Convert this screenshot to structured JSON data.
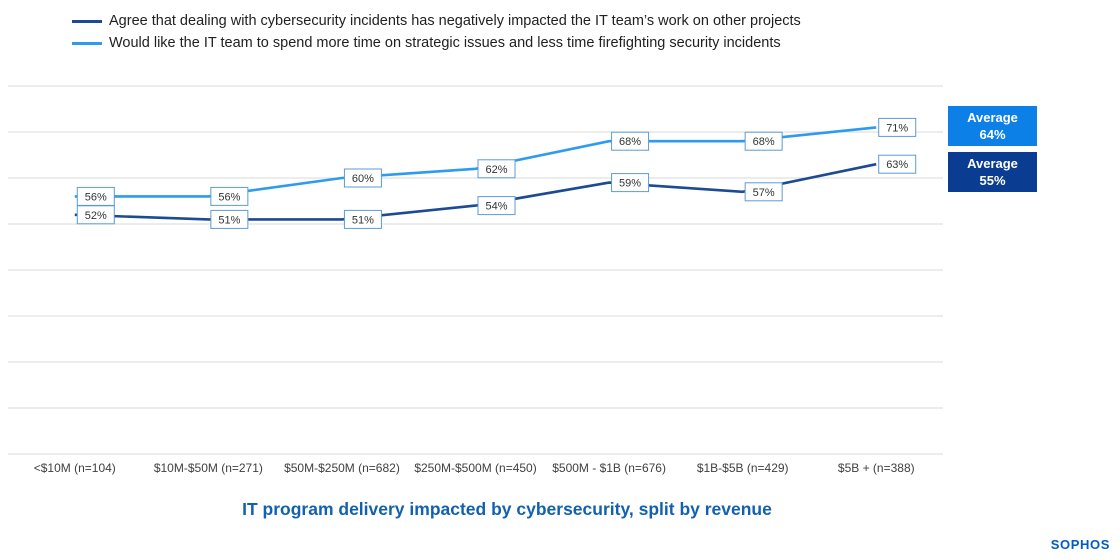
{
  "legend": {
    "items": [
      {
        "label": "Agree that dealing with cybersecurity incidents has negatively impacted the IT team’s work on other projects",
        "color": "#1c4b94"
      },
      {
        "label": "Would like the IT team to spend more time on strategic issues and less time firefighting security incidents",
        "color": "#2d9bf0"
      }
    ]
  },
  "chart_data": {
    "type": "line",
    "title": "IT program delivery impacted by cybersecurity, split by revenue",
    "categories": [
      "<$10M (n=104)",
      "$10M-$50M (n=271)",
      "$50M-$250M (n=682)",
      "$250M-$500M (n=450)",
      "$500M - $1B (n=676)",
      "$1B-$5B (n=429)",
      "$5B + (n=388)"
    ],
    "series": [
      {
        "name": "Agree that dealing with cybersecurity incidents has negatively impacted the IT team’s work on other projects",
        "color": "#1c4b94",
        "values": [
          52,
          51,
          51,
          54,
          59,
          57,
          63
        ]
      },
      {
        "name": "Would like the IT team to spend more time on strategic issues and less time firefighting security incidents",
        "color": "#2d9bf0",
        "values": [
          56,
          56,
          60,
          62,
          68,
          68,
          71
        ]
      }
    ],
    "ylim": [
      0,
      80
    ],
    "gridline_step": 10,
    "grid": "horizontal",
    "grid_color": "#d9d9d9",
    "label_border_color": "#5b9bd5",
    "legend_position": "top-left",
    "data_label_format": "percent"
  },
  "averages": [
    {
      "label": "Average",
      "value": "64%",
      "color": "#0d80e8"
    },
    {
      "label": "Average",
      "value": "55%",
      "color": "#0a3d91"
    }
  ],
  "title": {
    "text": "IT program delivery impacted by cybersecurity, split by revenue",
    "color": "#1261b0"
  },
  "brand": {
    "logo_text": "SOPHOS",
    "color": "#005bc8"
  }
}
